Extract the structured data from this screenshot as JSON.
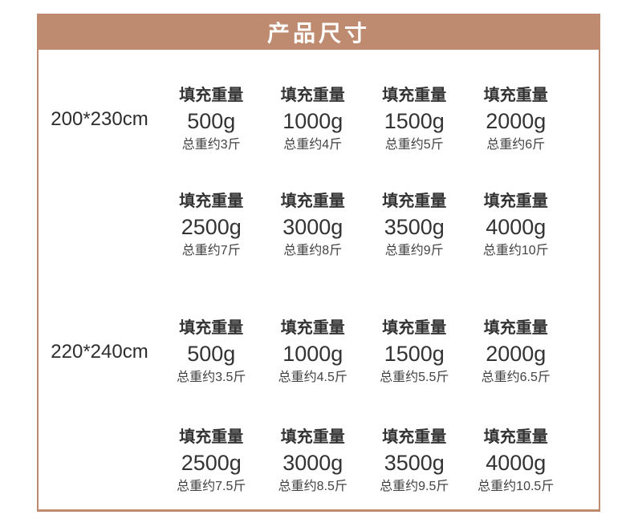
{
  "header": {
    "title": "产品尺寸"
  },
  "colors": {
    "accent": "#be8b71",
    "header_text": "#ffffff",
    "text_primary": "#333333",
    "text_secondary": "#424242"
  },
  "table": {
    "fill_caption": "填充重量",
    "groups": [
      {
        "size": "200*230cm",
        "rows": [
          [
            {
              "weight": "500g",
              "total": "总重约3斤"
            },
            {
              "weight": "1000g",
              "total": "总重约4斤"
            },
            {
              "weight": "1500g",
              "total": "总重约5斤"
            },
            {
              "weight": "2000g",
              "total": "总重约6斤"
            }
          ],
          [
            {
              "weight": "2500g",
              "total": "总重约7斤"
            },
            {
              "weight": "3000g",
              "total": "总重约8斤"
            },
            {
              "weight": "3500g",
              "total": "总重约9斤"
            },
            {
              "weight": "4000g",
              "total": "总重约10斤"
            }
          ]
        ]
      },
      {
        "size": "220*240cm",
        "rows": [
          [
            {
              "weight": "500g",
              "total": "总重约3.5斤"
            },
            {
              "weight": "1000g",
              "total": "总重约4.5斤"
            },
            {
              "weight": "1500g",
              "total": "总重约5.5斤"
            },
            {
              "weight": "2000g",
              "total": "总重约6.5斤"
            }
          ],
          [
            {
              "weight": "2500g",
              "total": "总重约7.5斤"
            },
            {
              "weight": "3000g",
              "total": "总重约8.5斤"
            },
            {
              "weight": "3500g",
              "total": "总重约9.5斤"
            },
            {
              "weight": "4000g",
              "total": "总重约10.5斤"
            }
          ]
        ]
      }
    ]
  }
}
